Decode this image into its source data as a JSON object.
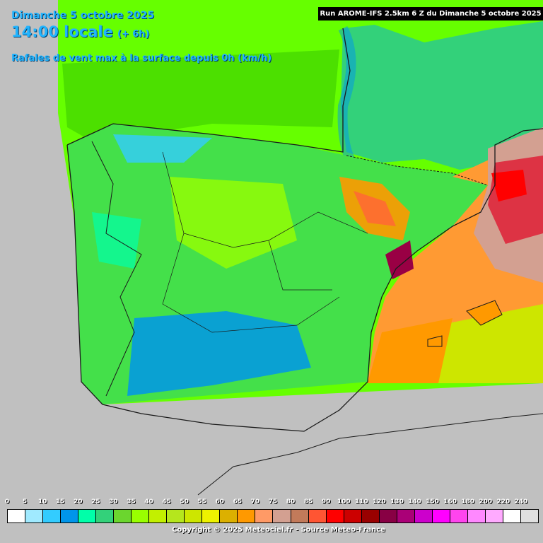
{
  "header": {
    "date": "Dimanche 5 octobre 2025",
    "time": "14:00 locale",
    "time_offset": "(+ 6h)",
    "subtitle": "Rafales de vent max à la surface depuis 0h (km/h)",
    "run": "Run AROME-IFS 2.5km 6 Z du Dimanche 5 octobre 2025"
  },
  "legend": {
    "labels": [
      "0",
      "5",
      "10",
      "15",
      "20",
      "25",
      "30",
      "35",
      "40",
      "45",
      "50",
      "55",
      "60",
      "65",
      "70",
      "75",
      "80",
      "85",
      "90",
      "100",
      "110",
      "120",
      "130",
      "140",
      "150",
      "160",
      "180",
      "200",
      "220",
      "240"
    ],
    "colors": [
      "#ffffff",
      "#a0eaff",
      "#33ccff",
      "#0095ea",
      "#00ffa9",
      "#33d17a",
      "#6bd62e",
      "#99ff00",
      "#c2f000",
      "#b5e61d",
      "#cde600",
      "#eef200",
      "#dcb000",
      "#ff9900",
      "#ff9a66",
      "#d3a091",
      "#c27a5a",
      "#ff5533",
      "#ff0000",
      "#cc0000",
      "#990000",
      "#880044",
      "#aa0077",
      "#cc00cc",
      "#ff00ff",
      "#ff44ee",
      "#ff88ff",
      "#ffaaff",
      "#ffffff",
      "#e0e0e0"
    ]
  },
  "copyright": "Copyright © 2025 Meteociel.fr - Source Meteo-France",
  "map": {
    "background_color": "#c0c0c0",
    "sea_color": "#66ff00",
    "land_color": "#33e64d",
    "high_wind_color": "#ff9a33",
    "extreme_color": "#cc0000",
    "border_color": "#1a1a1a"
  }
}
